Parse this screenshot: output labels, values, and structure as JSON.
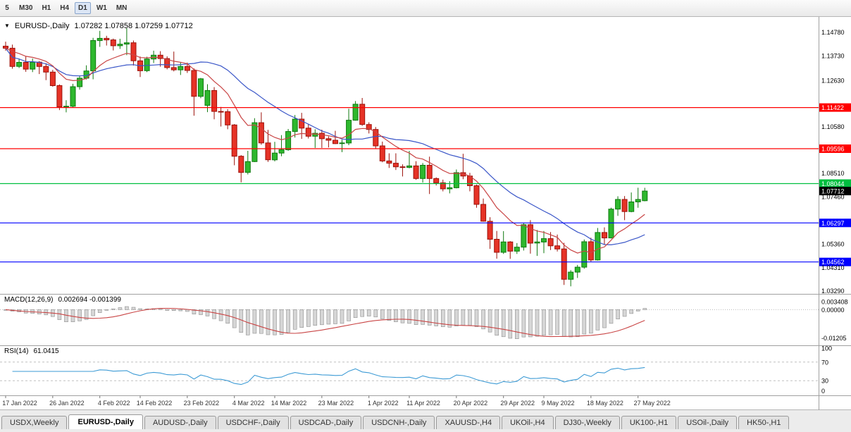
{
  "toolbar": {
    "timeframes": [
      {
        "label": "5",
        "active": false
      },
      {
        "label": "M30",
        "active": false
      },
      {
        "label": "H1",
        "active": false
      },
      {
        "label": "H4",
        "active": false
      },
      {
        "label": "D1",
        "active": true
      },
      {
        "label": "W1",
        "active": false
      },
      {
        "label": "MN",
        "active": false
      }
    ]
  },
  "icons": {
    "symbol_dropdown": "▼"
  },
  "chart": {
    "title": "EURUSD-,Daily",
    "ohlc_text": "1.07282 1.07858 1.07259 1.07712"
  },
  "chart_data": {
    "type": "candlestick",
    "symbol": "EURUSD-",
    "timeframe": "Daily",
    "current_bar": {
      "open": 1.07282,
      "high": 1.07858,
      "low": 1.07259,
      "close": 1.07712
    },
    "ylim": [
      1.033,
      1.152
    ],
    "colors": {
      "up_fill": "#2eb82e",
      "up_border": "#0f7a0f",
      "down_fill": "#e63327",
      "down_border": "#9c120b",
      "ma_fast": "#c94545",
      "ma_slow": "#3a56c8",
      "level_red": "#ff0000",
      "level_green": "#00bf40",
      "level_blue": "#0000ff",
      "current_label_bg": "#000000",
      "macd_hist_fill": "#d6d6d6",
      "macd_hist_border": "#8f8f8f",
      "macd_signal": "#c94545",
      "rsi_line": "#3d9bd5"
    },
    "candles": [
      [
        1.1415,
        1.1435,
        1.1395,
        1.1406
      ],
      [
        1.1406,
        1.1422,
        1.1315,
        1.1325
      ],
      [
        1.1325,
        1.1358,
        1.1318,
        1.1343
      ],
      [
        1.1343,
        1.137,
        1.1301,
        1.1313
      ],
      [
        1.1313,
        1.136,
        1.13,
        1.1344
      ],
      [
        1.1344,
        1.1349,
        1.1291,
        1.1325
      ],
      [
        1.1325,
        1.1339,
        1.1264,
        1.13
      ],
      [
        1.13,
        1.131,
        1.1235,
        1.124
      ],
      [
        1.124,
        1.1245,
        1.1131,
        1.1145
      ],
      [
        1.1145,
        1.1175,
        1.1121,
        1.1148
      ],
      [
        1.1148,
        1.1248,
        1.1141,
        1.1235
      ],
      [
        1.1235,
        1.1285,
        1.1222,
        1.1273
      ],
      [
        1.1273,
        1.133,
        1.1267,
        1.1305
      ],
      [
        1.1305,
        1.1452,
        1.1268,
        1.144
      ],
      [
        1.144,
        1.1483,
        1.1412,
        1.145
      ],
      [
        1.145,
        1.1461,
        1.1418,
        1.1443
      ],
      [
        1.1443,
        1.1449,
        1.1396,
        1.1417
      ],
      [
        1.1417,
        1.1448,
        1.1403,
        1.1424
      ],
      [
        1.1424,
        1.1495,
        1.1375,
        1.143
      ],
      [
        1.143,
        1.144,
        1.1329,
        1.135
      ],
      [
        1.135,
        1.1369,
        1.1278,
        1.1306
      ],
      [
        1.1306,
        1.1368,
        1.13,
        1.1358
      ],
      [
        1.1358,
        1.1395,
        1.134,
        1.1375
      ],
      [
        1.1375,
        1.1393,
        1.1324,
        1.136
      ],
      [
        1.136,
        1.137,
        1.1312,
        1.132
      ],
      [
        1.132,
        1.1391,
        1.1303,
        1.131
      ],
      [
        1.131,
        1.1344,
        1.1287,
        1.1325
      ],
      [
        1.1325,
        1.1342,
        1.1296,
        1.1307
      ],
      [
        1.1307,
        1.1316,
        1.1106,
        1.1192
      ],
      [
        1.1192,
        1.1274,
        1.1184,
        1.127
      ],
      [
        1.1152,
        1.1246,
        1.1122,
        1.1218
      ],
      [
        1.1218,
        1.1233,
        1.109,
        1.1125
      ],
      [
        1.1125,
        1.1145,
        1.1058,
        1.1124
      ],
      [
        1.1124,
        1.1135,
        1.1046,
        1.1065
      ],
      [
        1.1065,
        1.1069,
        1.0886,
        1.0926
      ],
      [
        1.0926,
        1.0931,
        1.081,
        1.0854
      ],
      [
        1.0854,
        1.095,
        1.0845,
        1.0902
      ],
      [
        1.0902,
        1.1095,
        1.09,
        1.1075
      ],
      [
        1.1075,
        1.1121,
        1.0977,
        1.0985
      ],
      [
        1.0985,
        1.1043,
        1.0901,
        1.091
      ],
      [
        1.091,
        1.099,
        1.0903,
        1.094
      ],
      [
        1.094,
        1.102,
        1.0926,
        1.0955
      ],
      [
        1.0955,
        1.1047,
        1.095,
        1.1036
      ],
      [
        1.1036,
        1.1109,
        1.1009,
        1.1091
      ],
      [
        1.1091,
        1.1119,
        1.1003,
        1.1051
      ],
      [
        1.1051,
        1.1069,
        1.1005,
        1.1015
      ],
      [
        1.1015,
        1.1046,
        1.0963,
        1.1028
      ],
      [
        1.1028,
        1.1044,
        1.0963,
        1.1004
      ],
      [
        1.1004,
        1.1014,
        1.0965,
        1.0997
      ],
      [
        1.0997,
        1.1039,
        1.098,
        1.0982
      ],
      [
        1.0982,
        1.0999,
        1.0944,
        1.0985
      ],
      [
        1.0985,
        1.1137,
        1.0975,
        1.1086
      ],
      [
        1.1086,
        1.1171,
        1.1084,
        1.1157
      ],
      [
        1.1157,
        1.1185,
        1.1061,
        1.1067
      ],
      [
        1.1067,
        1.1077,
        1.1027,
        1.1045
      ],
      [
        1.1045,
        1.1056,
        1.0961,
        1.0972
      ],
      [
        1.0972,
        1.0991,
        1.0899,
        1.0905
      ],
      [
        1.0905,
        1.0939,
        1.0874,
        1.0895
      ],
      [
        1.0895,
        1.0939,
        1.0865,
        1.0879
      ],
      [
        1.0879,
        1.089,
        1.0836,
        1.0876
      ],
      [
        1.0876,
        1.095,
        1.0872,
        1.0883
      ],
      [
        1.0883,
        1.0904,
        1.0821,
        1.0827
      ],
      [
        1.0827,
        1.0896,
        1.0809,
        1.0886
      ],
      [
        1.0886,
        1.0924,
        1.0758,
        1.0827
      ],
      [
        1.0827,
        1.0832,
        1.0796,
        1.0808
      ],
      [
        1.0808,
        1.0822,
        1.077,
        1.0781
      ],
      [
        1.0781,
        1.0815,
        1.0761,
        1.0786
      ],
      [
        1.0786,
        1.0867,
        1.0783,
        1.0853
      ],
      [
        1.0853,
        1.0937,
        1.0824,
        1.0838
      ],
      [
        1.0838,
        1.0852,
        1.077,
        1.0795
      ],
      [
        1.0795,
        1.08,
        1.0697,
        1.0712
      ],
      [
        1.0712,
        1.0738,
        1.0635,
        1.0637
      ],
      [
        1.0637,
        1.0655,
        1.0514,
        1.0557
      ],
      [
        1.0557,
        1.0594,
        1.0471,
        1.0499
      ],
      [
        1.0499,
        1.0593,
        1.0492,
        1.0545
      ],
      [
        1.0545,
        1.0549,
        1.047,
        1.0504
      ],
      [
        1.0504,
        1.054,
        1.0492,
        1.0522
      ],
      [
        1.0522,
        1.0631,
        1.0507,
        1.0622
      ],
      [
        1.0622,
        1.0642,
        1.0493,
        1.054
      ],
      [
        1.054,
        1.0598,
        1.0483,
        1.0545
      ],
      [
        1.0545,
        1.0594,
        1.0495,
        1.056
      ],
      [
        1.056,
        1.0589,
        1.0509,
        1.0528
      ],
      [
        1.0528,
        1.0578,
        1.0503,
        1.0514
      ],
      [
        1.0514,
        1.0541,
        1.0354,
        1.0379
      ],
      [
        1.0379,
        1.042,
        1.0348,
        1.0411
      ],
      [
        1.0411,
        1.0443,
        1.0385,
        1.0433
      ],
      [
        1.0433,
        1.0556,
        1.0426,
        1.0546
      ],
      [
        1.0546,
        1.0564,
        1.0458,
        1.0465
      ],
      [
        1.0465,
        1.0607,
        1.0462,
        1.0587
      ],
      [
        1.0587,
        1.061,
        1.0532,
        1.0563
      ],
      [
        1.0563,
        1.0697,
        1.0561,
        1.0691
      ],
      [
        1.0691,
        1.0748,
        1.0661,
        1.0734
      ],
      [
        1.0734,
        1.0749,
        1.0642,
        1.068
      ],
      [
        1.068,
        1.0765,
        1.0677,
        1.0723
      ],
      [
        1.0723,
        1.0786,
        1.0697,
        1.0734
      ],
      [
        1.07282,
        1.07858,
        1.07259,
        1.07712
      ]
    ],
    "date_labels": [
      {
        "i": 0,
        "t": "17 Jan 2022"
      },
      {
        "i": 7,
        "t": "26 Jan 2022"
      },
      {
        "i": 14,
        "t": "4 Feb 2022"
      },
      {
        "i": 20,
        "t": "14 Feb 2022"
      },
      {
        "i": 27,
        "t": "23 Feb 2022"
      },
      {
        "i": 34,
        "t": "4 Mar 2022"
      },
      {
        "i": 40,
        "t": "14 Mar 2022"
      },
      {
        "i": 47,
        "t": "23 Mar 2022"
      },
      {
        "i": 54,
        "t": "1 Apr 2022"
      },
      {
        "i": 60,
        "t": "11 Apr 2022"
      },
      {
        "i": 67,
        "t": "20 Apr 2022"
      },
      {
        "i": 74,
        "t": "29 Apr 2022"
      },
      {
        "i": 80,
        "t": "9 May 2022"
      },
      {
        "i": 87,
        "t": "18 May 2022"
      },
      {
        "i": 94,
        "t": "27 May 2022"
      }
    ],
    "price_axis": [
      {
        "text": "1.14780",
        "value": 1.1478,
        "bg": null
      },
      {
        "text": "1.13730",
        "value": 1.1373,
        "bg": null
      },
      {
        "text": "1.12630",
        "value": 1.1263,
        "bg": null
      },
      {
        "text": "1.11422",
        "value": 1.11422,
        "bg": "#ff0000"
      },
      {
        "text": "1.10580",
        "value": 1.1058,
        "bg": null
      },
      {
        "text": "1.09596",
        "value": 1.09596,
        "bg": "#ff0000"
      },
      {
        "text": "1.08510",
        "value": 1.0851,
        "bg": null
      },
      {
        "text": "1.08044",
        "value": 1.08044,
        "bg": "#00bf40"
      },
      {
        "text": "1.07712",
        "value": 1.07712,
        "bg": "#000000"
      },
      {
        "text": "1.07460",
        "value": 1.0746,
        "bg": null
      },
      {
        "text": "1.06297",
        "value": 1.06297,
        "bg": "#0000ff"
      },
      {
        "text": "1.05360",
        "value": 1.0536,
        "bg": null
      },
      {
        "text": "1.04562",
        "value": 1.04562,
        "bg": "#0000ff"
      },
      {
        "text": "1.04310",
        "value": 1.0431,
        "bg": null
      },
      {
        "text": "1.03290",
        "value": 1.0329,
        "bg": null
      }
    ],
    "levels": [
      {
        "value": 1.11422,
        "color": "#ff0000"
      },
      {
        "value": 1.09596,
        "color": "#ff0000"
      },
      {
        "value": 1.08044,
        "color": "#00bf40"
      },
      {
        "value": 1.06297,
        "color": "#0000ff"
      },
      {
        "value": 1.04562,
        "color": "#0000ff"
      }
    ],
    "overlays": [
      {
        "name": "ma-fast",
        "method": "ema",
        "period": 10
      },
      {
        "name": "ma-slow",
        "method": "sma",
        "period": 20
      }
    ],
    "macd": {
      "label": "MACD(12,26,9)",
      "values_text": "0.002694 -0.001399",
      "fast": 12,
      "slow": 26,
      "signal": 9,
      "ylim": [
        -0.014,
        0.0055
      ],
      "axis": [
        {
          "text": "0.003408",
          "value": 0.003408
        },
        {
          "text": "0.00000",
          "value": 0
        },
        {
          "text": "-0.01205",
          "value": -0.01205
        }
      ]
    },
    "rsi": {
      "label": "RSI(14)",
      "value_text": "61.0415",
      "period": 14,
      "levels": [
        70,
        30
      ],
      "ylim": [
        0,
        100
      ],
      "axis": [
        {
          "text": "100",
          "value": 100
        },
        {
          "text": "70",
          "value": 70
        },
        {
          "text": "30",
          "value": 30
        },
        {
          "text": "0",
          "value": 0
        }
      ]
    }
  },
  "tabs": [
    {
      "label": "USDX,Weekly",
      "active": false
    },
    {
      "label": "EURUSD-,Daily",
      "active": true
    },
    {
      "label": "AUDUSD-,Daily",
      "active": false
    },
    {
      "label": "USDCHF-,Daily",
      "active": false
    },
    {
      "label": "USDCAD-,Daily",
      "active": false
    },
    {
      "label": "USDCNH-,Daily",
      "active": false
    },
    {
      "label": "XAUUSD-,H4",
      "active": false
    },
    {
      "label": "UKOil-,H4",
      "active": false
    },
    {
      "label": "DJ30-,Weekly",
      "active": false
    },
    {
      "label": "UK100-,H1",
      "active": false
    },
    {
      "label": "USOil-,Daily",
      "active": false
    },
    {
      "label": "HK50-,H1",
      "active": false
    }
  ]
}
